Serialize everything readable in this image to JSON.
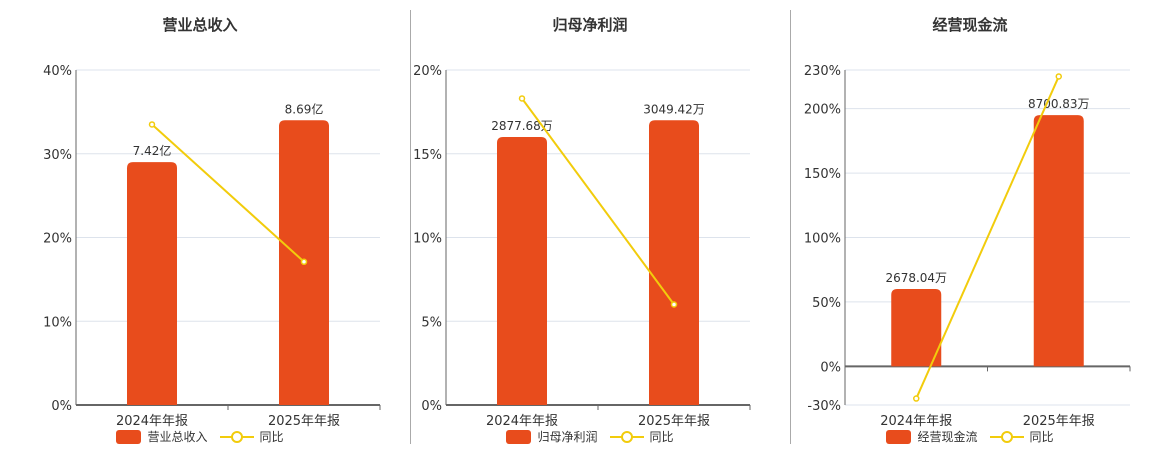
{
  "chart_data": [
    {
      "type": "bar",
      "title": "营业总收入",
      "categories": [
        "2024年年报",
        "2025年年报"
      ],
      "series": [
        {
          "name": "营业总收入",
          "type": "bar",
          "values": [
            7.42,
            8.69
          ],
          "labels": [
            "7.42亿",
            "8.69亿"
          ],
          "unit": "亿"
        },
        {
          "name": "同比",
          "type": "line",
          "values": [
            33.5,
            17.1
          ],
          "unit": "%"
        }
      ],
      "yticks": [
        "0%",
        "10%",
        "20%",
        "30%",
        "40%"
      ],
      "ylim": [
        0,
        40
      ],
      "bar_heights_pct": [
        29,
        34
      ],
      "grid": true,
      "legend_position": "bottom"
    },
    {
      "type": "bar",
      "title": "归母净利润",
      "categories": [
        "2024年年报",
        "2025年年报"
      ],
      "series": [
        {
          "name": "归母净利润",
          "type": "bar",
          "values": [
            2877.68,
            3049.42
          ],
          "labels": [
            "2877.68万",
            "3049.42万"
          ],
          "unit": "万"
        },
        {
          "name": "同比",
          "type": "line",
          "values": [
            18.3,
            6.0
          ],
          "unit": "%"
        }
      ],
      "yticks": [
        "0%",
        "5%",
        "10%",
        "15%",
        "20%"
      ],
      "ylim": [
        0,
        20
      ],
      "bar_heights_pct": [
        16,
        17
      ],
      "grid": true,
      "legend_position": "bottom"
    },
    {
      "type": "bar",
      "title": "经营现金流",
      "categories": [
        "2024年年报",
        "2025年年报"
      ],
      "series": [
        {
          "name": "经营现金流",
          "type": "bar",
          "values": [
            2678.04,
            8700.83
          ],
          "labels": [
            "2678.04万",
            "8700.83万"
          ],
          "unit": "万"
        },
        {
          "name": "同比",
          "type": "line",
          "values": [
            -25,
            225
          ],
          "unit": "%"
        }
      ],
      "yticks": [
        "-30%",
        "0%",
        "50%",
        "100%",
        "150%",
        "200%",
        "230%"
      ],
      "ylim": [
        -30,
        230
      ],
      "bar_heights_pct": [
        60,
        195
      ],
      "grid": true,
      "legend_position": "bottom"
    }
  ],
  "legend": {
    "line_label": "同比"
  },
  "colors": {
    "bar": "#e84c1c",
    "line": "#f2cc0c",
    "grid": "#dde3ec",
    "axis": "#666666"
  }
}
